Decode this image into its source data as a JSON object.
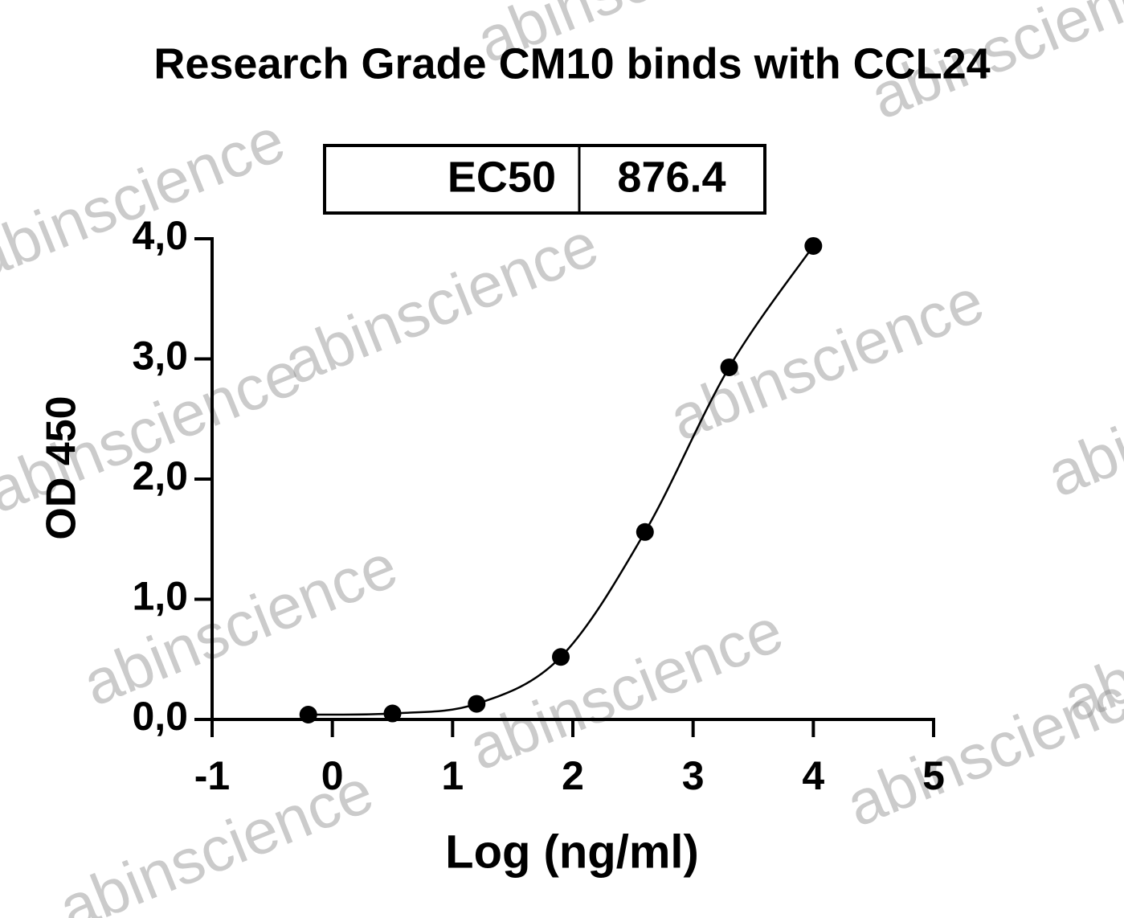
{
  "chart_data": {
    "type": "scatter",
    "title": "Research Grade CM10 binds with CCL24",
    "xlabel": "Log (ng/ml)",
    "ylabel": "OD 450",
    "table": {
      "label": "EC50",
      "value": 876.4
    },
    "watermark": "abinscience",
    "series": [
      {
        "color": "#000000",
        "x": [
          -0.2,
          0.5,
          1.2,
          1.9,
          2.6,
          3.3,
          4.0
        ],
        "values": [
          0.04,
          0.05,
          0.13,
          0.52,
          1.56,
          2.93,
          3.94
        ]
      }
    ],
    "xlim": [
      -1,
      5
    ],
    "xticks": [
      -1,
      0,
      1,
      2,
      3,
      4,
      5
    ],
    "ylim": [
      0,
      4
    ],
    "yticks": [
      {
        "value": 0,
        "label": "0,0"
      },
      {
        "value": 1,
        "label": "1,0"
      },
      {
        "value": 2,
        "label": "2,0"
      },
      {
        "value": 3,
        "label": "3,0"
      },
      {
        "value": 4,
        "label": "4,0"
      }
    ],
    "grid": false
  }
}
